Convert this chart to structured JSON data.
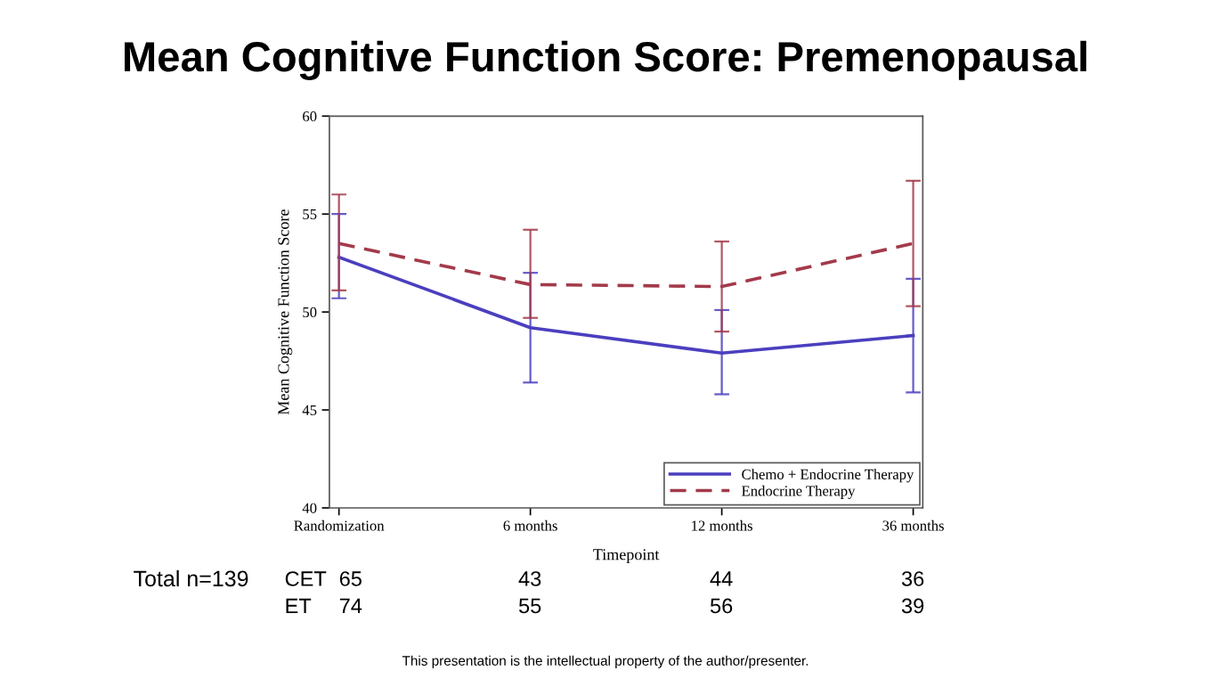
{
  "chart_data": {
    "type": "line",
    "title": "Mean Cognitive Function Score: Premenopausal",
    "xlabel": "Timepoint",
    "ylabel": "Mean Cognitive Function Score",
    "categories": [
      "Randomization",
      "6 months",
      "12 months",
      "36 months"
    ],
    "series": [
      {
        "name": "Chemo + Endocrine Therapy",
        "color": "#4b3fbf",
        "line_style": "solid",
        "values": [
          52.8,
          49.2,
          47.9,
          48.8
        ],
        "errors": [
          [
            50.7,
            55.0
          ],
          [
            46.4,
            52.0
          ],
          [
            45.8,
            50.1
          ],
          [
            45.9,
            51.7
          ]
        ]
      },
      {
        "name": "Endocrine Therapy",
        "color": "#a33a4a",
        "line_style": "dashed",
        "values": [
          53.5,
          51.4,
          51.3,
          53.5
        ],
        "errors": [
          [
            51.1,
            56.0
          ],
          [
            49.7,
            54.2
          ],
          [
            49.0,
            53.6
          ],
          [
            50.3,
            56.7
          ]
        ]
      }
    ],
    "ylim": [
      40,
      60
    ],
    "yticks": [
      40,
      45,
      50,
      55,
      60
    ],
    "grid": false,
    "legend": "bottom right",
    "marker": "none",
    "annotations": [
      "Total n=139",
      "CET",
      "65",
      "43",
      "44",
      "36",
      "ET",
      "74",
      "55",
      "56",
      "39",
      "This presentation is the intellectual property of the author/presenter."
    ]
  }
}
